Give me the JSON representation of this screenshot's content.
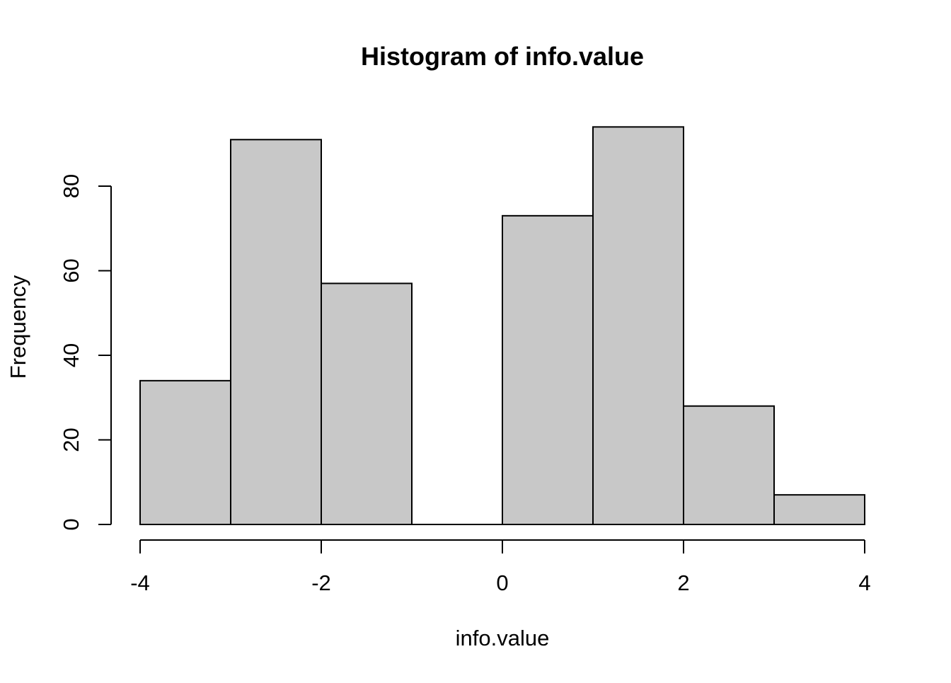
{
  "chart_data": {
    "type": "bar",
    "title": "Histogram of info.value",
    "xlabel": "info.value",
    "ylabel": "Frequency",
    "bin_edges": [
      -4,
      -3,
      -2,
      -1,
      0,
      1,
      2,
      3,
      4
    ],
    "values": [
      34,
      91,
      57,
      0,
      73,
      94,
      28,
      7
    ],
    "xlim": [
      -4,
      4
    ],
    "ylim": [
      0,
      80
    ],
    "x_ticks": [
      -4,
      -2,
      0,
      2,
      4
    ],
    "x_tick_labels": [
      "-4",
      "-2",
      "0",
      "2",
      "4"
    ],
    "y_ticks": [
      0,
      20,
      40,
      60,
      80
    ],
    "y_tick_labels": [
      "0",
      "20",
      "40",
      "60",
      "80"
    ],
    "grid": false,
    "legend": "none",
    "bar_fill_color": "#c8c8c8",
    "bar_border_color": "#000000"
  }
}
